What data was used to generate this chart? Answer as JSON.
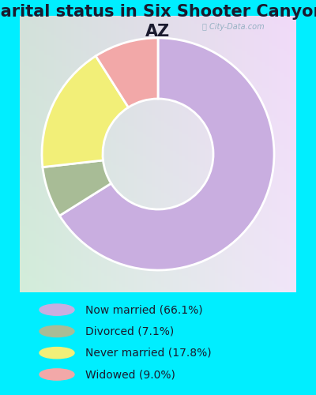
{
  "title": "Marital status in Six Shooter Canyon,\nAZ",
  "slices": [
    66.1,
    7.1,
    17.8,
    9.0
  ],
  "labels": [
    "Now married (66.1%)",
    "Divorced (7.1%)",
    "Never married (17.8%)",
    "Widowed (9.0%)"
  ],
  "colors": [
    "#c9aee0",
    "#a8bc96",
    "#f2ef78",
    "#f2a8a8"
  ],
  "background_color": "#00eeff",
  "title_fontsize": 15,
  "legend_fontsize": 10,
  "watermark": "City-Data.com",
  "startangle": 90,
  "donut_width": 0.55
}
